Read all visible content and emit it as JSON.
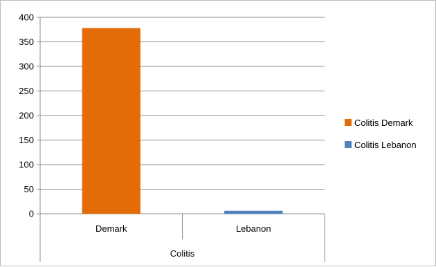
{
  "chart_data": {
    "type": "bar",
    "group_label": "Colitis",
    "categories": [
      "Demark",
      "Lebanon"
    ],
    "series": [
      {
        "name": "Colitis Demark",
        "color": "#E36C09",
        "values": [
          378,
          null
        ]
      },
      {
        "name": "Colitis Lebanon",
        "color": "#4F81BD",
        "values": [
          null,
          6
        ]
      }
    ],
    "ylim": [
      0,
      400
    ],
    "yticks": [
      "0",
      "50",
      "100",
      "150",
      "200",
      "250",
      "300",
      "350",
      "400"
    ],
    "grid": true,
    "legend_position": "right",
    "title": "",
    "xlabel": "",
    "ylabel": ""
  }
}
